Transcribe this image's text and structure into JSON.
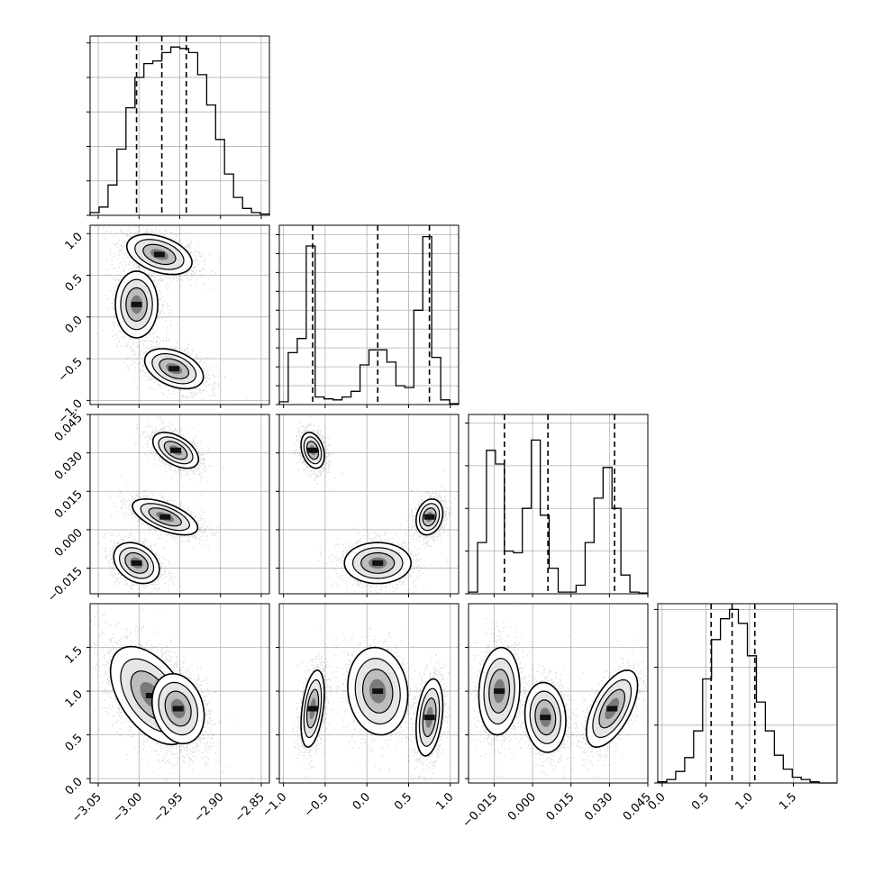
{
  "chart_data": {
    "type": "corner",
    "grid": true,
    "params": [
      {
        "lim": [
          -3.06,
          -2.84
        ],
        "ticks": [
          -3.05,
          -3.0,
          -2.95,
          -2.9,
          -2.85
        ],
        "tick_labels": [
          "−3.05",
          "−3.00",
          "−2.95",
          "−2.90",
          "−2.85"
        ],
        "quantiles": [
          -3.003,
          -2.972,
          -2.942
        ]
      },
      {
        "lim": [
          -1.05,
          1.1
        ],
        "ticks": [
          -1.0,
          -0.5,
          0.0,
          0.5,
          1.0
        ],
        "tick_labels": [
          "−1.0",
          "−0.5",
          "0.0",
          "0.5",
          "1.0"
        ],
        "quantiles": [
          -0.65,
          0.13,
          0.75
        ]
      },
      {
        "lim": [
          -0.025,
          0.045
        ],
        "ticks": [
          -0.015,
          0.0,
          0.015,
          0.03,
          0.045
        ],
        "tick_labels": [
          "−0.015",
          "0.000",
          "0.015",
          "0.030",
          "0.045"
        ],
        "quantiles": [
          -0.011,
          0.006,
          0.032
        ]
      },
      {
        "lim": [
          -0.05,
          2.0
        ],
        "ticks": [
          0.0,
          0.5,
          1.0,
          1.5
        ],
        "tick_labels": [
          "0.0",
          "0.5",
          "1.0",
          "1.5"
        ],
        "quantiles": [
          0.56,
          0.8,
          1.06
        ]
      }
    ],
    "histograms": [
      {
        "param": 0,
        "bins": 20,
        "range": [
          -3.06,
          -2.84
        ],
        "counts": [
          2,
          6,
          22,
          48,
          78,
          100,
          110,
          112,
          118,
          122,
          121,
          118,
          102,
          80,
          55,
          30,
          13,
          5,
          2,
          1
        ],
        "ylim": [
          0,
          130
        ],
        "yticks": [
          0,
          25,
          50,
          75,
          100,
          125
        ]
      },
      {
        "param": 1,
        "bins": 20,
        "range": [
          -1.05,
          1.1
        ],
        "counts": [
          3,
          55,
          70,
          168,
          8,
          6,
          5,
          8,
          14,
          42,
          58,
          58,
          45,
          20,
          18,
          100,
          178,
          50,
          5,
          1
        ],
        "ylim": [
          0,
          190
        ],
        "yticks": [
          0,
          20,
          40,
          60,
          80,
          100,
          120,
          140,
          160,
          180
        ]
      },
      {
        "param": 2,
        "bins": 20,
        "range": [
          -0.025,
          0.045
        ],
        "counts": [
          2,
          60,
          168,
          152,
          50,
          48,
          100,
          180,
          92,
          30,
          2,
          2,
          10,
          60,
          112,
          148,
          100,
          22,
          2,
          1
        ],
        "ylim": [
          0,
          210
        ],
        "yticks": [
          0,
          50,
          100,
          150,
          200
        ]
      },
      {
        "param": 3,
        "bins": 20,
        "range": [
          -0.05,
          2.0
        ],
        "counts": [
          1,
          3,
          10,
          22,
          45,
          90,
          124,
          142,
          150,
          138,
          110,
          70,
          45,
          24,
          12,
          5,
          3,
          1,
          0,
          0
        ],
        "ylim": [
          0,
          155
        ],
        "yticks": [
          0,
          50,
          100,
          150
        ]
      }
    ],
    "pairs": [
      {
        "x_param": 0,
        "y_param": 1,
        "clusters": [
          {
            "center": [
              -2.975,
              0.75
            ],
            "sx": 0.02,
            "sy": 0.12,
            "rho": -0.4,
            "n": 1500
          },
          {
            "center": [
              -3.003,
              0.15
            ],
            "sx": 0.013,
            "sy": 0.2,
            "rho": 0.0,
            "n": 1100
          },
          {
            "center": [
              -2.957,
              -0.62
            ],
            "sx": 0.018,
            "sy": 0.12,
            "rho": -0.4,
            "n": 1400
          }
        ]
      },
      {
        "x_param": 0,
        "y_param": 2,
        "clusters": [
          {
            "center": [
              -2.955,
              0.031
            ],
            "sx": 0.014,
            "sy": 0.0035,
            "rho": -0.5,
            "n": 1300
          },
          {
            "center": [
              -2.968,
              0.005
            ],
            "sx": 0.02,
            "sy": 0.0035,
            "rho": -0.6,
            "n": 1300
          },
          {
            "center": [
              -3.003,
              -0.013
            ],
            "sx": 0.014,
            "sy": 0.004,
            "rho": -0.3,
            "n": 1300
          }
        ]
      },
      {
        "x_param": 1,
        "y_param": 2,
        "clusters": [
          {
            "center": [
              -0.65,
              0.031
            ],
            "sx": 0.07,
            "sy": 0.0035,
            "rho": -0.3,
            "n": 1300
          },
          {
            "center": [
              0.13,
              -0.013
            ],
            "sx": 0.2,
            "sy": 0.004,
            "rho": 0.0,
            "n": 1300
          },
          {
            "center": [
              0.75,
              0.005
            ],
            "sx": 0.08,
            "sy": 0.0035,
            "rho": 0.2,
            "n": 1300
          }
        ]
      },
      {
        "x_param": 0,
        "y_param": 3,
        "clusters": [
          {
            "center": [
              -2.985,
              0.95
            ],
            "sx": 0.025,
            "sy": 0.28,
            "rho": -0.5,
            "n": 2400
          },
          {
            "center": [
              -2.952,
              0.8
            ],
            "sx": 0.016,
            "sy": 0.2,
            "rho": -0.2,
            "n": 1600
          }
        ]
      },
      {
        "x_param": 1,
        "y_param": 3,
        "clusters": [
          {
            "center": [
              -0.65,
              0.8
            ],
            "sx": 0.07,
            "sy": 0.22,
            "rho": 0.4,
            "n": 1300
          },
          {
            "center": [
              0.13,
              1.0
            ],
            "sx": 0.18,
            "sy": 0.25,
            "rho": -0.1,
            "n": 1300
          },
          {
            "center": [
              0.75,
              0.7
            ],
            "sx": 0.08,
            "sy": 0.22,
            "rho": 0.3,
            "n": 1300
          }
        ]
      },
      {
        "x_param": 2,
        "y_param": 3,
        "clusters": [
          {
            "center": [
              -0.013,
              1.0
            ],
            "sx": 0.004,
            "sy": 0.25,
            "rho": 0.1,
            "n": 1300
          },
          {
            "center": [
              0.005,
              0.7
            ],
            "sx": 0.004,
            "sy": 0.2,
            "rho": -0.1,
            "n": 1300
          },
          {
            "center": [
              0.031,
              0.8
            ],
            "sx": 0.005,
            "sy": 0.22,
            "rho": 0.6,
            "n": 1300
          }
        ]
      }
    ]
  }
}
